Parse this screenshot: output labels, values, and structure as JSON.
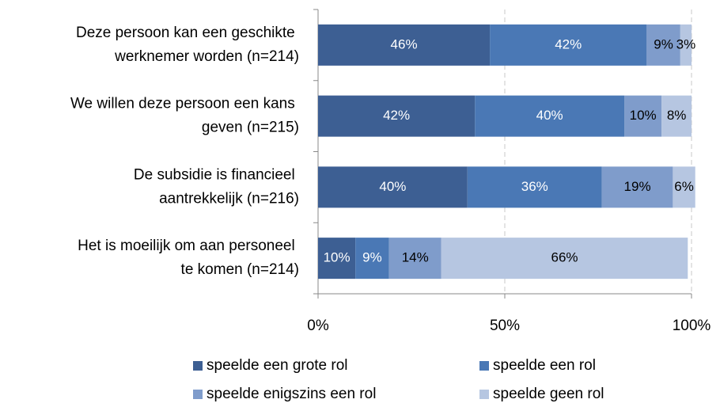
{
  "chart_data": {
    "type": "stacked-barh",
    "categories": [
      "Deze persoon kan een geschikte werknemer worden (n=214)",
      "We willen deze persoon een kans geven (n=215)",
      "De subsidie is financieel aantrekkelijk (n=216)",
      "Het is moeilijk om aan personeel te komen (n=214)"
    ],
    "series": [
      {
        "name": "speelde een grote rol",
        "color": "#3d5f93",
        "values": [
          46,
          42,
          40,
          10
        ],
        "value_labels": [
          "46%",
          "42%",
          "40%",
          "10%"
        ]
      },
      {
        "name": "speelde een rol",
        "color": "#4a78b5",
        "values": [
          42,
          40,
          36,
          9
        ],
        "value_labels": [
          "42%",
          "40%",
          "36%",
          "9%"
        ]
      },
      {
        "name": "speelde enigszins een rol",
        "color": "#7f9ccb",
        "values": [
          9,
          10,
          19,
          14
        ],
        "value_labels": [
          "9%",
          "10%",
          "19%",
          "14%"
        ]
      },
      {
        "name": "speelde geen rol",
        "color": "#b6c6e1",
        "values": [
          3,
          8,
          6,
          66
        ],
        "value_labels": [
          "3%",
          "8%",
          "6%",
          "66%"
        ]
      }
    ],
    "xlim": [
      0,
      100
    ],
    "xticks": [
      {
        "value": 0,
        "label": "0%"
      },
      {
        "value": 50,
        "label": "50%"
      },
      {
        "value": 100,
        "label": "100%"
      }
    ],
    "grid": true,
    "legend": "bottom"
  }
}
